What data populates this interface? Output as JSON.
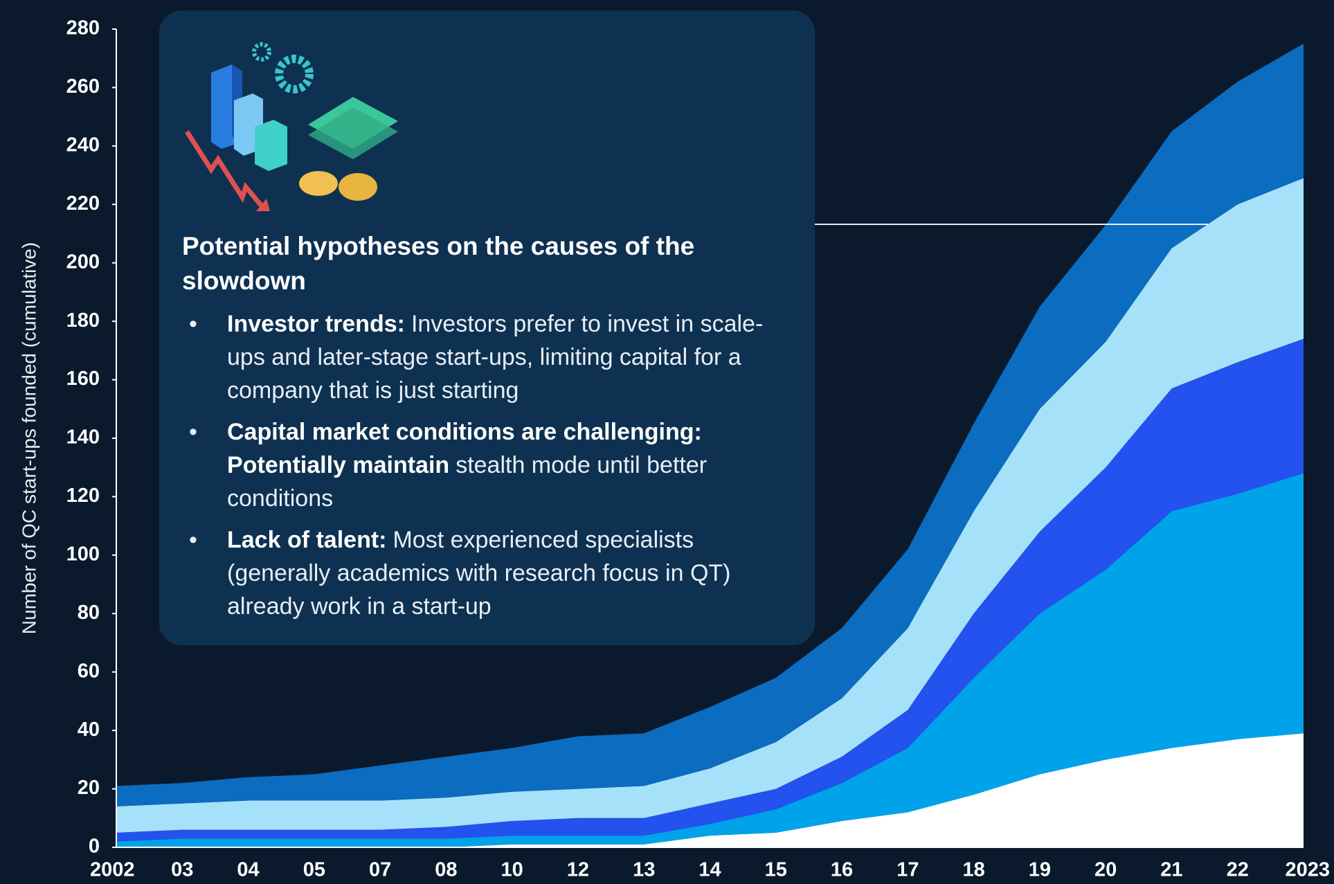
{
  "chart_data": {
    "type": "stacked-area",
    "y_label": "Number of QC start-ups founded (cumulative)",
    "categories": [
      "2002",
      "03",
      "04",
      "05",
      "07",
      "08",
      "10",
      "12",
      "13",
      "14",
      "15",
      "16",
      "17",
      "18",
      "19",
      "20",
      "21",
      "22",
      "2023"
    ],
    "series": [
      {
        "color": "#ffffff",
        "values": [
          0,
          0,
          0,
          0,
          0,
          0,
          1,
          1,
          1,
          4,
          5,
          9,
          12,
          18,
          25,
          30,
          34,
          37,
          39
        ]
      },
      {
        "color": "#00a2ea",
        "values": [
          2,
          3,
          3,
          3,
          3,
          3,
          3,
          3,
          3,
          4,
          8,
          13,
          22,
          40,
          55,
          65,
          81,
          84,
          89
        ]
      },
      {
        "color": "#2352ef",
        "values": [
          3,
          3,
          3,
          3,
          3,
          4,
          5,
          6,
          6,
          7,
          7,
          9,
          13,
          22,
          28,
          35,
          42,
          45,
          46
        ]
      },
      {
        "color": "#a6e1fa",
        "values": [
          9,
          9,
          10,
          10,
          10,
          10,
          10,
          10,
          11,
          12,
          16,
          20,
          28,
          35,
          42,
          43,
          48,
          54,
          55
        ]
      },
      {
        "color": "#0b6cc0",
        "values": [
          7,
          7,
          8,
          9,
          12,
          14,
          15,
          18,
          18,
          21,
          22,
          24,
          27,
          30,
          35,
          40,
          40,
          42,
          46
        ]
      }
    ],
    "ylim": [
      0,
      280
    ],
    "yticks": [
      0,
      20,
      40,
      60,
      80,
      100,
      120,
      140,
      160,
      180,
      200,
      220,
      240,
      260,
      280
    ],
    "grid": false,
    "annotation": {
      "heading": "Potential hypotheses on the causes of the slowdown",
      "bullets": [
        {
          "bold": "Investor trends:",
          "text": "Investors prefer to invest in scale-ups and later-stage start-ups, limiting capital for a company that is just starting"
        },
        {
          "bold": "Capital market conditions are challenging: Potentially maintain",
          "text": "stealth mode until better conditions"
        },
        {
          "bold": "Lack of talent:",
          "text": "Most experienced specialists (generally academics with research focus in QT) already work in a start-up"
        }
      ]
    }
  }
}
